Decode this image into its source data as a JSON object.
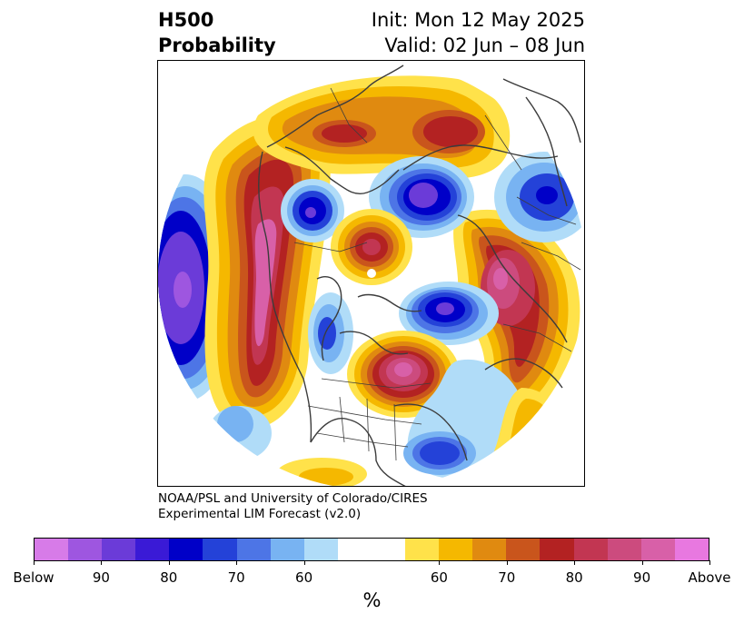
{
  "header": {
    "title_line1": "H500",
    "title_line2": "Probability",
    "init_text": "Init: Mon 12 May 2025",
    "valid_text": "Valid: 02 Jun – 08 Jun"
  },
  "credit": {
    "line1": "NOAA/PSL and University of Colorado/CIRES",
    "line2": "Experimental LIM Forecast (v2.0)"
  },
  "colorbar": {
    "colors": [
      "#d77be8",
      "#9e56e0",
      "#6b3bd8",
      "#3a1ad6",
      "#0000c8",
      "#2442d8",
      "#4d75e6",
      "#78b3f2",
      "#b0dcf8",
      "#ffffff",
      "#ffffff",
      "#ffe24a",
      "#f5b800",
      "#e08a10",
      "#c9551c",
      "#b32222",
      "#c23652",
      "#cc4b7e",
      "#d860a8",
      "#e878e0"
    ],
    "tick_labels": [
      "Below",
      "90",
      "80",
      "70",
      "60",
      "60",
      "70",
      "80",
      "90",
      "Above"
    ],
    "unit": "%"
  },
  "map": {
    "palette": {
      "below_extreme": "#d77be8",
      "below_5": "#6b3bd8",
      "below_4": "#0000c8",
      "below_3": "#2442d8",
      "below_2": "#4d75e6",
      "below_1": "#78b3f2",
      "below_0": "#b0dcf8",
      "above_0": "#ffe24a",
      "above_1": "#f5b800",
      "above_2": "#e08a10",
      "above_3": "#c9551c",
      "above_4": "#b32222",
      "above_5": "#c23652",
      "above_6": "#cc4b7e",
      "above_7": "#d860a8",
      "coast": "#3c3c3c"
    }
  }
}
